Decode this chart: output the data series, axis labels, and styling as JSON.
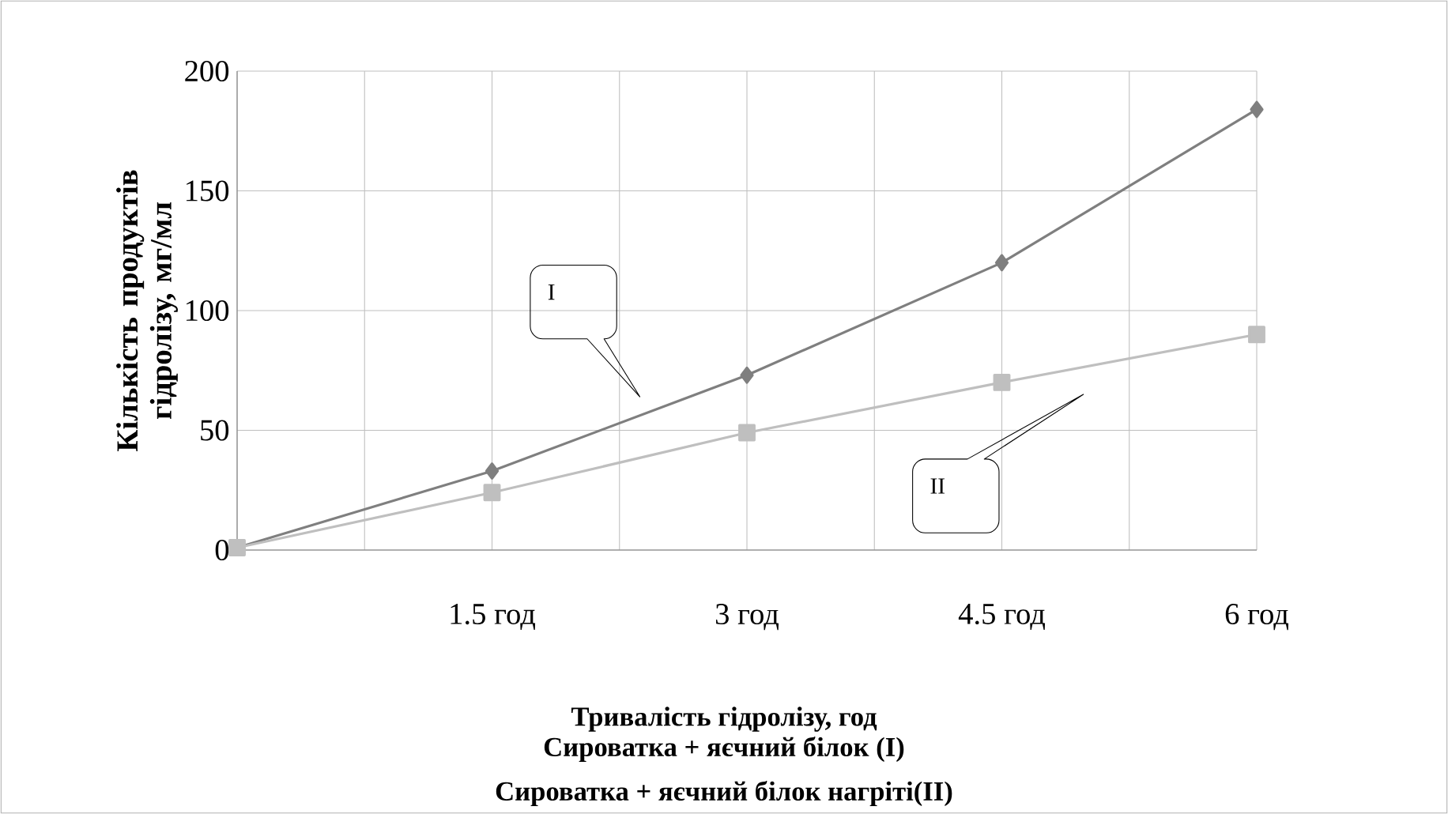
{
  "chart_data": {
    "type": "line",
    "ylabel": "Кількість продуктів гідролізу, мг/мл",
    "xlabel": "Тривалість гідролізу,  год",
    "categories": [
      null,
      "1.5 год",
      "3 год",
      "4.5 год",
      "6 год"
    ],
    "series": [
      {
        "color": "#7f7f7f",
        "marker": "diamond",
        "values": [
          1,
          33,
          73,
          120,
          184
        ]
      },
      {
        "color": "#bfbfbf",
        "marker": "square",
        "values": [
          1,
          24,
          49,
          70,
          90
        ]
      }
    ],
    "annotations": [
      "I",
      "II",
      "Сироватка + яєчний білок (I)",
      "Сироватка + яєчний білок нагріті(II)"
    ],
    "ylim": [
      0,
      200
    ],
    "yticks": [
      0,
      50,
      100,
      150,
      200
    ],
    "grid": true
  }
}
